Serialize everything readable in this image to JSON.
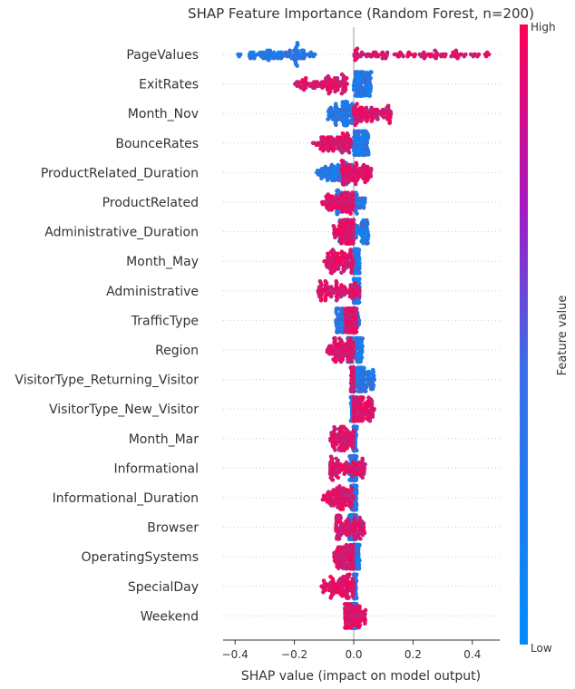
{
  "chart_data": {
    "type": "scatter",
    "subtype": "shap-beeswarm",
    "title": "SHAP Feature Importance (Random Forest, n=200)",
    "xlabel": "SHAP value (impact on model output)",
    "xlim": [
      -0.45,
      0.48
    ],
    "xticks": [
      -0.4,
      -0.2,
      0.0,
      0.2,
      0.4
    ],
    "xtick_labels": [
      "−0.4",
      "−0.2",
      "0.0",
      "0.2",
      "0.4"
    ],
    "colorbar": {
      "label": "Feature value",
      "high_label": "High",
      "low_label": "Low",
      "low_color": "#008bfb",
      "high_color": "#ff0052"
    },
    "grid": false,
    "features": [
      {
        "name": "PageValues",
        "low_range": [
          -0.4,
          -0.13
        ],
        "high_range": [
          0.0,
          0.46
        ]
      },
      {
        "name": "ExitRates",
        "low_range": [
          0.0,
          0.06
        ],
        "high_range": [
          -0.2,
          -0.02
        ]
      },
      {
        "name": "Month_Nov",
        "low_range": [
          -0.09,
          0.0
        ],
        "high_range": [
          0.0,
          0.13
        ]
      },
      {
        "name": "BounceRates",
        "low_range": [
          0.0,
          0.05
        ],
        "high_range": [
          -0.14,
          -0.01
        ]
      },
      {
        "name": "ProductRelated_Duration",
        "low_range": [
          -0.13,
          0.0
        ],
        "high_range": [
          -0.04,
          0.06
        ]
      },
      {
        "name": "ProductRelated",
        "low_range": [
          -0.06,
          0.04
        ],
        "high_range": [
          -0.11,
          0.0
        ]
      },
      {
        "name": "Administrative_Duration",
        "low_range": [
          -0.05,
          0.05
        ],
        "high_range": [
          -0.07,
          0.0
        ]
      },
      {
        "name": "Month_May",
        "low_range": [
          0.0,
          0.02
        ],
        "high_range": [
          -0.1,
          0.0
        ]
      },
      {
        "name": "Administrative",
        "low_range": [
          0.0,
          0.02
        ],
        "high_range": [
          -0.12,
          0.02
        ]
      },
      {
        "name": "TrafficType",
        "low_range": [
          -0.06,
          0.02
        ],
        "high_range": [
          -0.03,
          0.01
        ]
      },
      {
        "name": "Region",
        "low_range": [
          -0.02,
          0.03
        ],
        "high_range": [
          -0.09,
          0.0
        ]
      },
      {
        "name": "VisitorType_Returning_Visitor",
        "low_range": [
          0.0,
          0.07
        ],
        "high_range": [
          -0.01,
          0.0
        ]
      },
      {
        "name": "VisitorType_New_Visitor",
        "low_range": [
          -0.01,
          0.0
        ],
        "high_range": [
          0.0,
          0.07
        ]
      },
      {
        "name": "Month_Mar",
        "low_range": [
          0.0,
          0.01
        ],
        "high_range": [
          -0.08,
          0.0
        ]
      },
      {
        "name": "Informational",
        "low_range": [
          -0.02,
          0.01
        ],
        "high_range": [
          -0.08,
          0.04
        ]
      },
      {
        "name": "Informational_Duration",
        "low_range": [
          -0.01,
          0.01
        ],
        "high_range": [
          -0.11,
          0.0
        ]
      },
      {
        "name": "Browser",
        "low_range": [
          -0.02,
          0.01
        ],
        "high_range": [
          -0.06,
          0.04
        ]
      },
      {
        "name": "OperatingSystems",
        "low_range": [
          0.0,
          0.02
        ],
        "high_range": [
          -0.07,
          0.0
        ]
      },
      {
        "name": "SpecialDay",
        "low_range": [
          0.0,
          0.01
        ],
        "high_range": [
          -0.11,
          0.0
        ]
      },
      {
        "name": "Weekend",
        "low_range": [
          -0.02,
          0.01
        ],
        "high_range": [
          -0.03,
          0.04
        ]
      }
    ]
  }
}
